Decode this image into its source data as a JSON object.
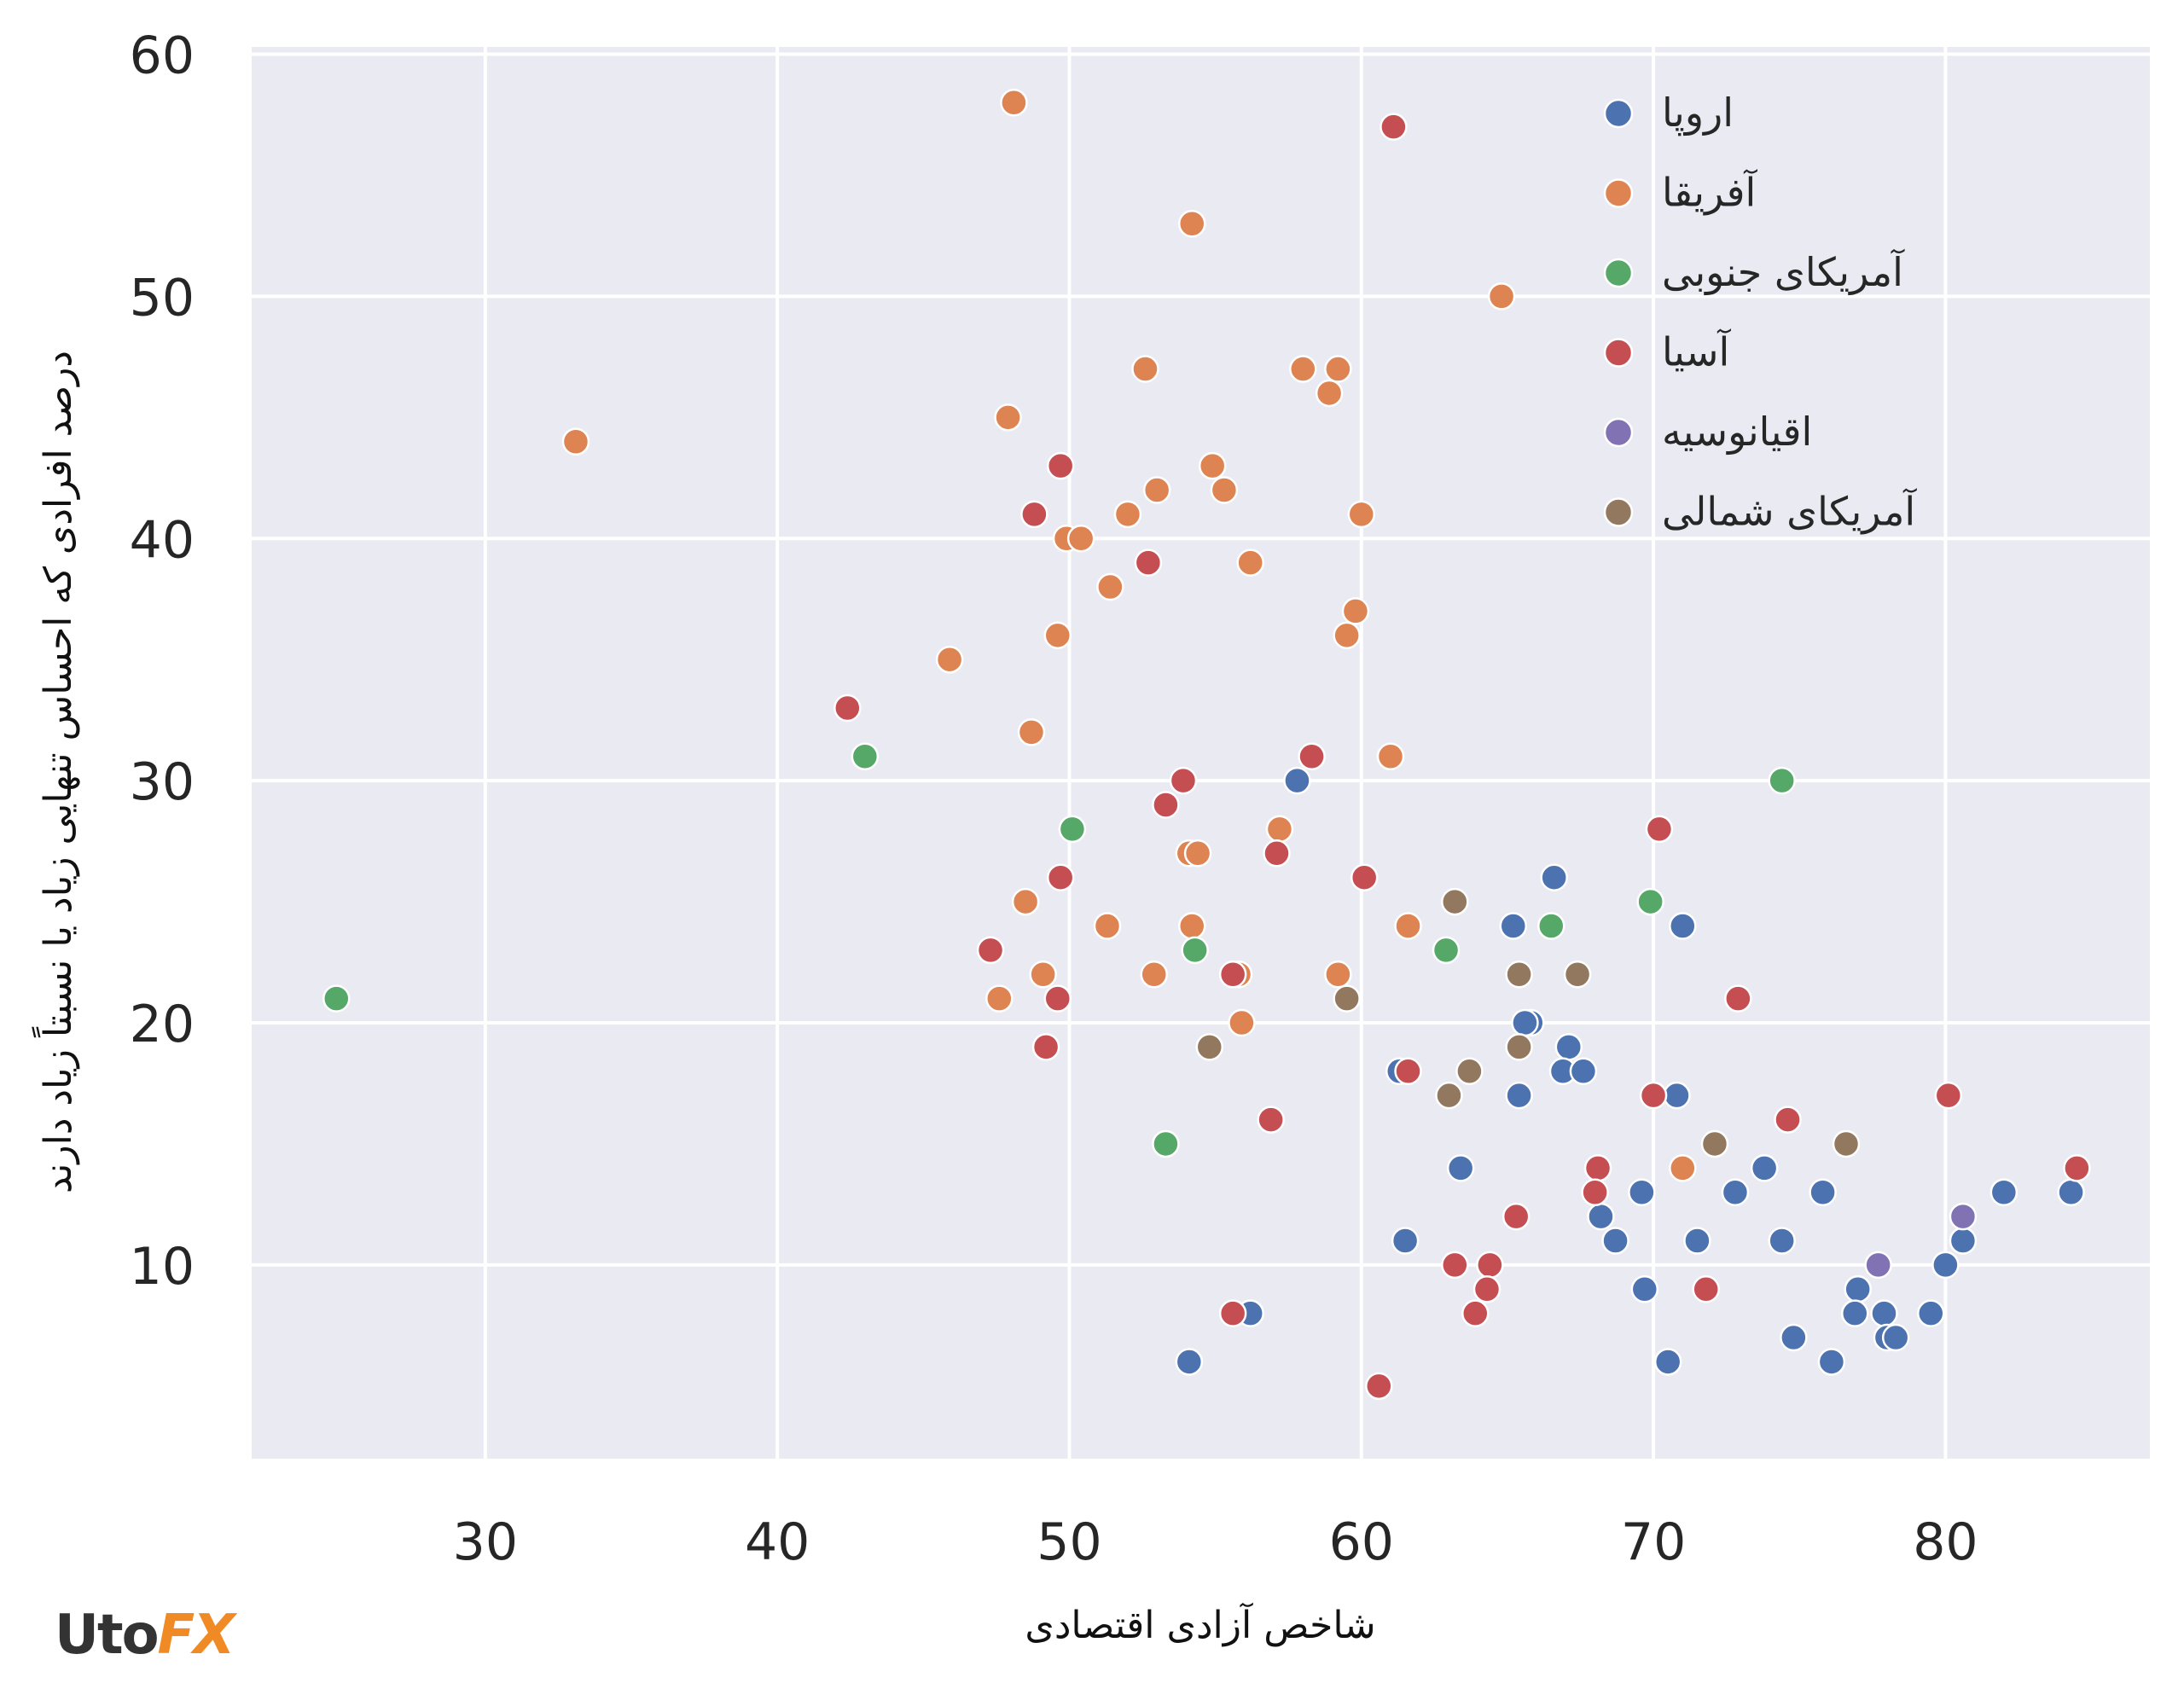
{
  "chart_data": {
    "type": "scatter",
    "title": "",
    "xlabel": "شاخص آزادی اقتصادی",
    "ylabel": "درصد افرادی که احساس تنهایی زیاد یا نسبتاً زیاد دارند",
    "xlim": [
      22,
      87
    ],
    "ylim": [
      2,
      60.3
    ],
    "xticks": [
      30,
      40,
      50,
      60,
      70,
      80
    ],
    "yticks": [
      10,
      20,
      30,
      40,
      50,
      60
    ],
    "grid": true,
    "legend_position": "top-right",
    "series": [
      {
        "name": "اروپا",
        "color": "#4c72b0",
        "points": [
          [
            57.8,
            30
          ],
          [
            66.6,
            26
          ],
          [
            65.2,
            24
          ],
          [
            71,
            24
          ],
          [
            65.8,
            20
          ],
          [
            65.6,
            20
          ],
          [
            67.1,
            19
          ],
          [
            66.9,
            18
          ],
          [
            67.6,
            18
          ],
          [
            61.3,
            18
          ],
          [
            65.4,
            17
          ],
          [
            70.8,
            17
          ],
          [
            63.4,
            14
          ],
          [
            73.8,
            14
          ],
          [
            69.6,
            13
          ],
          [
            72.8,
            13
          ],
          [
            75.8,
            13
          ],
          [
            82,
            13
          ],
          [
            84.3,
            13
          ],
          [
            68.2,
            12
          ],
          [
            61.5,
            11
          ],
          [
            68.7,
            11
          ],
          [
            71.5,
            11
          ],
          [
            74.4,
            11
          ],
          [
            80.6,
            11
          ],
          [
            69.7,
            9
          ],
          [
            77,
            9
          ],
          [
            80,
            10
          ],
          [
            56.2,
            8
          ],
          [
            76.9,
            8
          ],
          [
            77.9,
            8
          ],
          [
            79.5,
            8
          ],
          [
            78,
            7
          ],
          [
            78.3,
            7
          ],
          [
            74.8,
            7
          ],
          [
            54.1,
            6
          ],
          [
            70.5,
            6
          ],
          [
            76.1,
            6
          ]
        ]
      },
      {
        "name": "آفریقا",
        "color": "#dd8452",
        "points": [
          [
            48.1,
            58
          ],
          [
            54.2,
            53
          ],
          [
            64.8,
            50
          ],
          [
            52.6,
            47
          ],
          [
            58,
            47
          ],
          [
            59.2,
            47
          ],
          [
            58.9,
            46
          ],
          [
            47.9,
            45
          ],
          [
            33.1,
            44
          ],
          [
            54.9,
            43
          ],
          [
            53,
            42
          ],
          [
            55.3,
            42
          ],
          [
            52,
            41
          ],
          [
            60,
            41
          ],
          [
            49.9,
            40
          ],
          [
            50.4,
            40
          ],
          [
            56.2,
            39
          ],
          [
            51.4,
            38
          ],
          [
            59.8,
            37
          ],
          [
            49.6,
            36
          ],
          [
            59.5,
            36
          ],
          [
            45.9,
            35
          ],
          [
            48.7,
            32
          ],
          [
            61,
            31
          ],
          [
            57.2,
            28
          ],
          [
            54.1,
            27
          ],
          [
            54.4,
            27
          ],
          [
            48.5,
            25
          ],
          [
            51.3,
            24
          ],
          [
            54.2,
            24
          ],
          [
            61.6,
            24
          ],
          [
            49.1,
            22
          ],
          [
            52.9,
            22
          ],
          [
            55.8,
            22
          ],
          [
            59.2,
            22
          ],
          [
            47.6,
            21
          ],
          [
            55.9,
            20
          ],
          [
            71,
            14
          ]
        ]
      },
      {
        "name": "آمریکای جنوبی",
        "color": "#55a868",
        "points": [
          [
            43,
            31
          ],
          [
            74.4,
            30
          ],
          [
            50.1,
            28
          ],
          [
            69.9,
            25
          ],
          [
            66.5,
            24
          ],
          [
            54.3,
            23
          ],
          [
            62.9,
            23
          ],
          [
            24.9,
            21
          ],
          [
            53.3,
            15
          ]
        ]
      },
      {
        "name": "آسیا",
        "color": "#c44e52",
        "points": [
          [
            61.1,
            57
          ],
          [
            49.7,
            43
          ],
          [
            48.8,
            41
          ],
          [
            52.7,
            39
          ],
          [
            42.4,
            33
          ],
          [
            58.3,
            31
          ],
          [
            53.9,
            30
          ],
          [
            53.3,
            29
          ],
          [
            70.2,
            28
          ],
          [
            57.1,
            27
          ],
          [
            60.1,
            26
          ],
          [
            49.7,
            26
          ],
          [
            47.3,
            23
          ],
          [
            55.6,
            22
          ],
          [
            49.6,
            21
          ],
          [
            72.9,
            21
          ],
          [
            49.2,
            19
          ],
          [
            61.6,
            18
          ],
          [
            70,
            17
          ],
          [
            80.1,
            17
          ],
          [
            56.9,
            16
          ],
          [
            74.6,
            16
          ],
          [
            68.1,
            14
          ],
          [
            84.5,
            14
          ],
          [
            68,
            13
          ],
          [
            65.3,
            12
          ],
          [
            63.2,
            10
          ],
          [
            64.4,
            10
          ],
          [
            64.3,
            9
          ],
          [
            71.8,
            9
          ],
          [
            55.6,
            8
          ],
          [
            63.9,
            8
          ],
          [
            60.6,
            5
          ]
        ]
      },
      {
        "name": "اقیانوسیه",
        "color": "#8172b3",
        "points": [
          [
            80.6,
            12
          ],
          [
            77.7,
            10
          ]
        ]
      },
      {
        "name": "آمریکای شمالی",
        "color": "#937860",
        "points": [
          [
            63.2,
            25
          ],
          [
            65.4,
            22
          ],
          [
            67.4,
            22
          ],
          [
            59.5,
            21
          ],
          [
            54.8,
            19
          ],
          [
            65.4,
            19
          ],
          [
            63.7,
            18
          ],
          [
            63,
            17
          ],
          [
            72.1,
            15
          ],
          [
            76.6,
            15
          ]
        ]
      }
    ]
  },
  "logo": {
    "part1": "Uto",
    "part2": "FX"
  }
}
